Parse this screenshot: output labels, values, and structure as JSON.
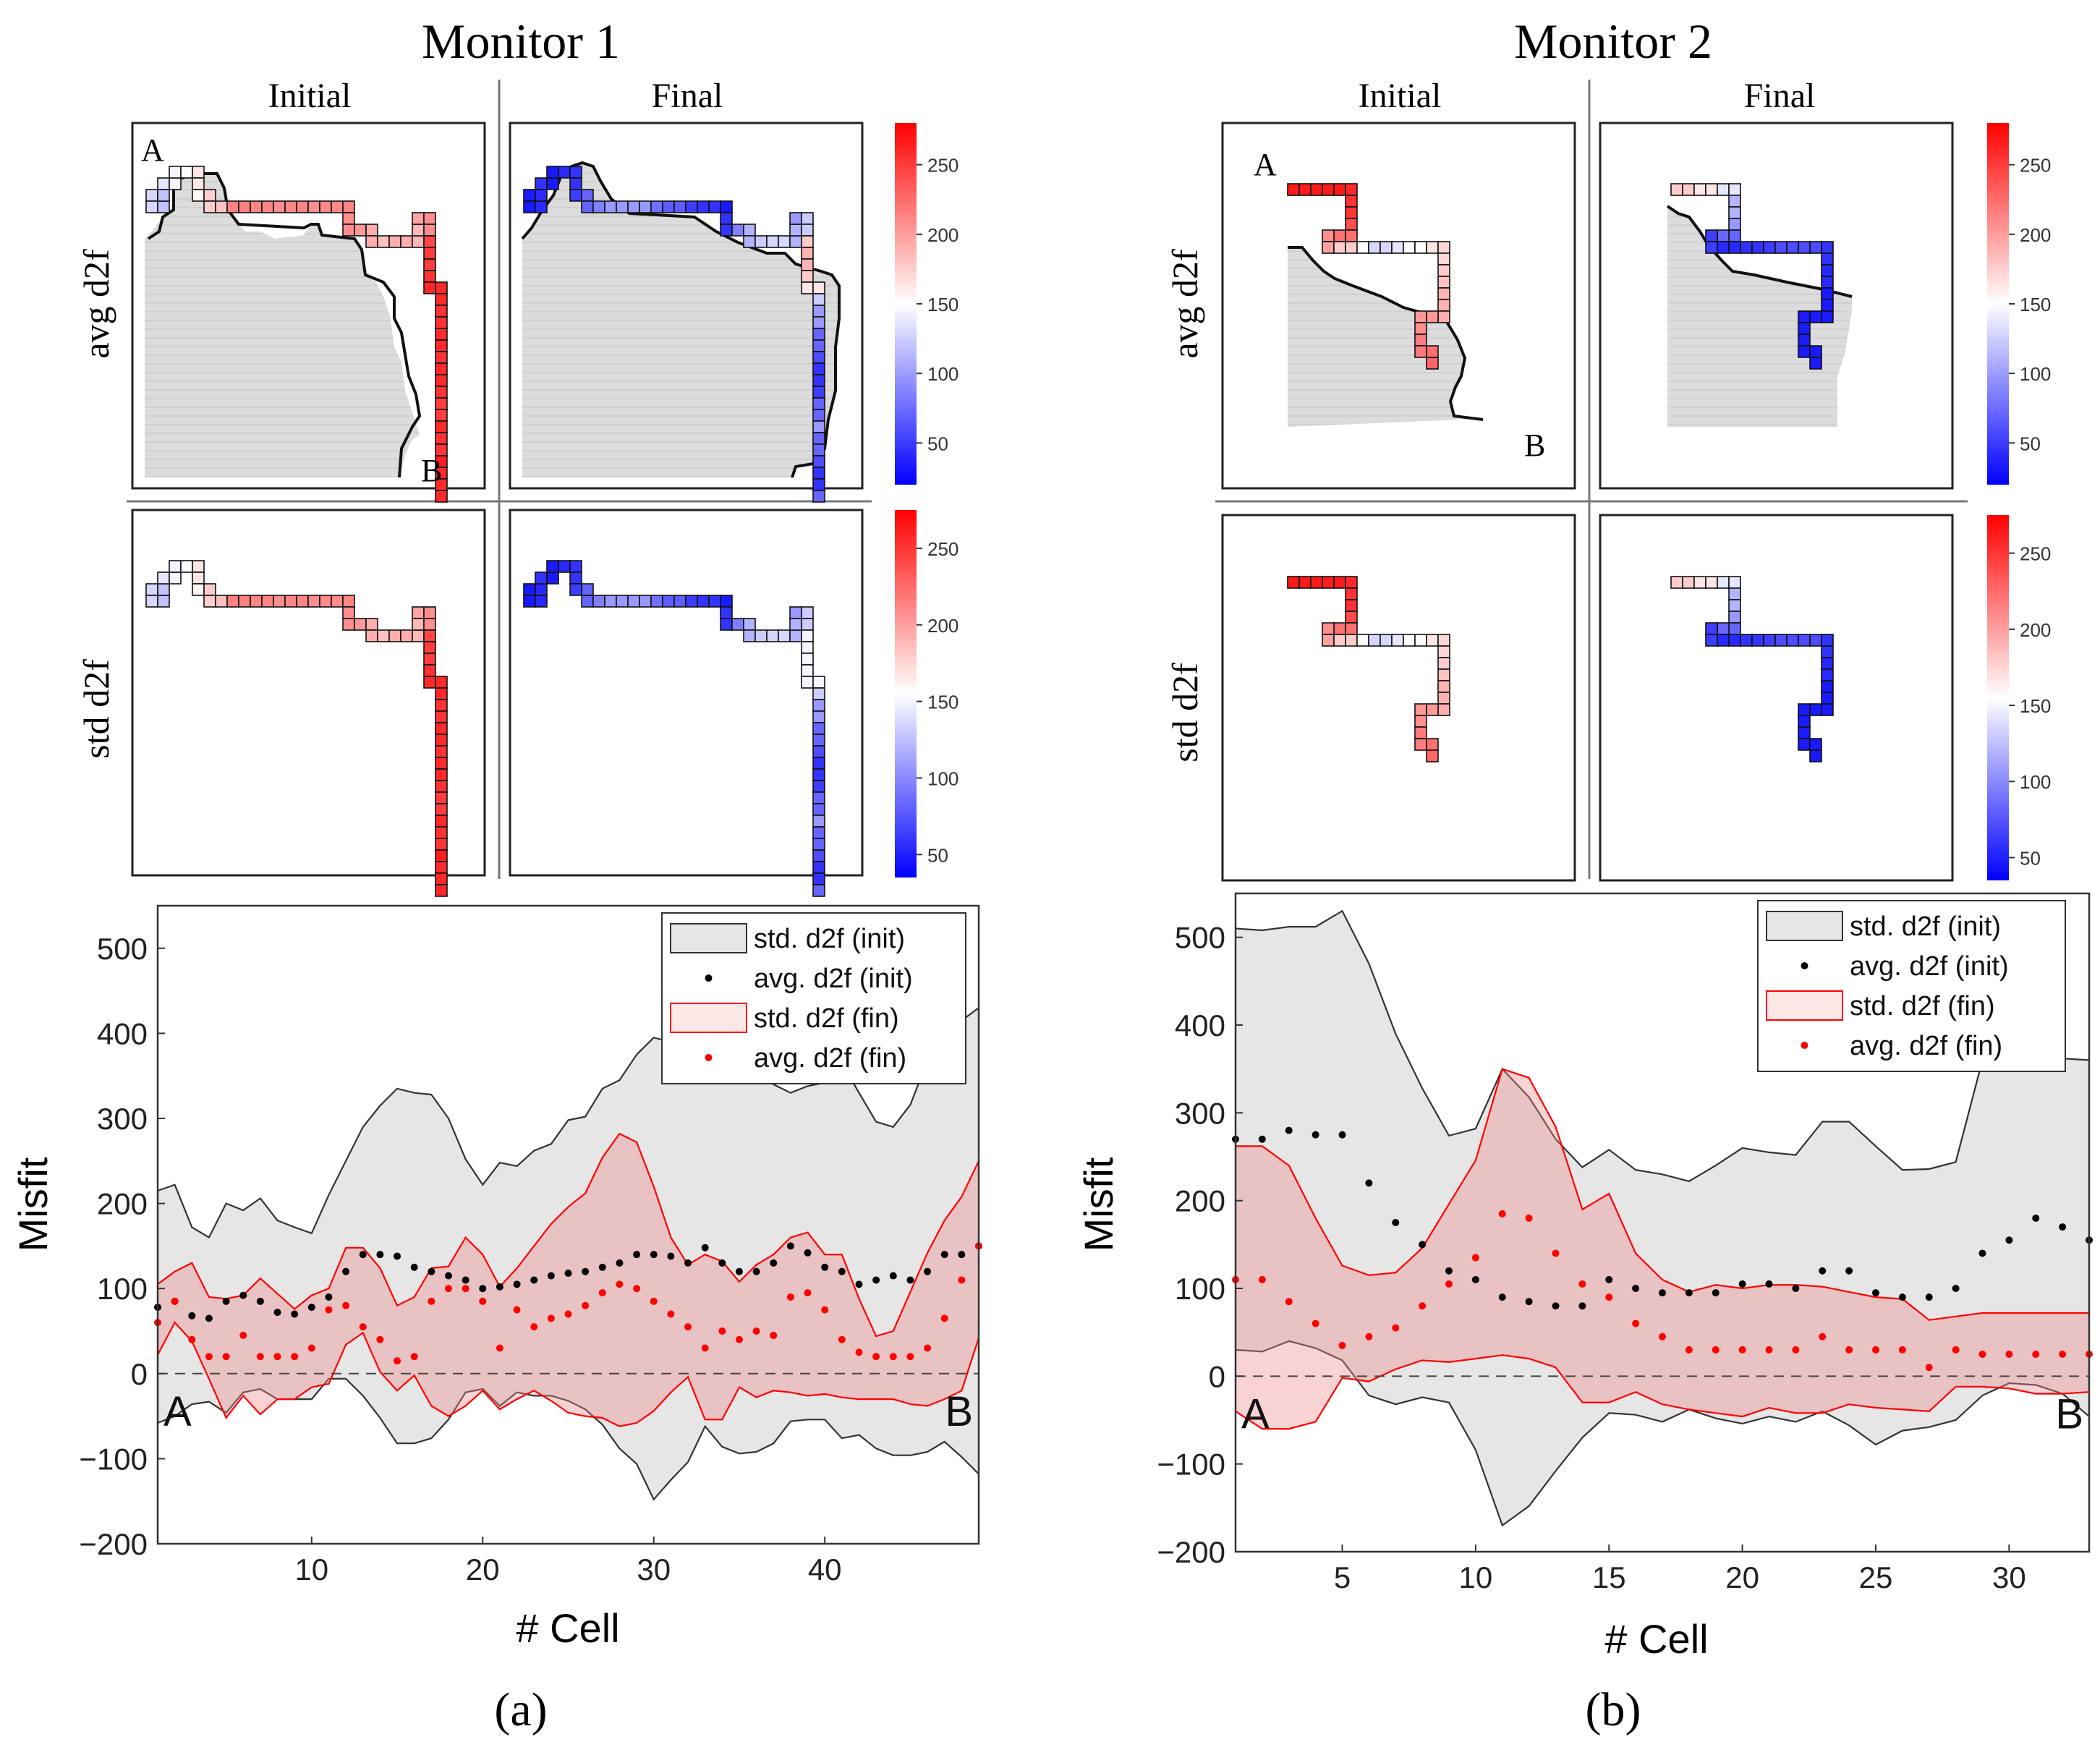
{
  "colors": {
    "red": "#ff0000",
    "blue": "#0000ff",
    "gray_fill": "#d9d9d9",
    "gray_band": "#e6e6e6",
    "pink_band": "#f7cfcf",
    "pink_light": "#fde8e8"
  },
  "panels": [
    {
      "title": "Monitor 1",
      "label": "(a)",
      "maps": {
        "col_initial": "Initial",
        "col_final": "Final",
        "row_avg": "avg d2f",
        "row_std": "std d2f",
        "marker_a": "A",
        "marker_b": "B",
        "colorbar_top_ticks": [
          "250",
          "200",
          "150",
          "100",
          "50"
        ],
        "colorbar_bottom_ticks": [
          "250",
          "200",
          "150",
          "100",
          "50"
        ]
      },
      "chart": {
        "xlabel": "# Cell",
        "ylabel": "Misfit",
        "xticks": [
          "10",
          "20",
          "30",
          "40"
        ],
        "yticks": [
          "500",
          "400",
          "300",
          "200",
          "100",
          "0",
          "−100",
          "−200"
        ],
        "marker_a": "A",
        "marker_b": "B",
        "legend": [
          "std. d2f (init)",
          "avg. d2f (init)",
          "std. d2f (fin)",
          "avg. d2f (fin)"
        ]
      }
    },
    {
      "title": "Monitor 2",
      "label": "(b)",
      "maps": {
        "col_initial": "Initial",
        "col_final": "Final",
        "row_avg": "avg d2f",
        "row_std": "std d2f",
        "marker_a": "A",
        "marker_b": "B",
        "colorbar_top_ticks": [
          "250",
          "200",
          "150",
          "100",
          "50"
        ],
        "colorbar_bottom_ticks": [
          "250",
          "200",
          "150",
          "100",
          "50"
        ]
      },
      "chart": {
        "xlabel": "# Cell",
        "ylabel": "Misfit",
        "xticks": [
          "5",
          "10",
          "15",
          "20",
          "25",
          "30"
        ],
        "yticks": [
          "500",
          "400",
          "300",
          "200",
          "100",
          "0",
          "−100",
          "−200"
        ],
        "marker_a": "A",
        "marker_b": "B",
        "legend": [
          "std. d2f (init)",
          "avg. d2f (init)",
          "std. d2f (fin)",
          "avg. d2f (fin)"
        ]
      }
    }
  ],
  "chart_data": [
    {
      "type": "area",
      "xlim": [
        1,
        49
      ],
      "ylim": [
        -200,
        550
      ],
      "grid": false,
      "legend_position": "top-right",
      "x": [
        1,
        2,
        3,
        4,
        5,
        6,
        7,
        8,
        9,
        10,
        11,
        12,
        13,
        14,
        15,
        16,
        17,
        18,
        19,
        20,
        21,
        22,
        23,
        24,
        25,
        26,
        27,
        28,
        29,
        30,
        31,
        32,
        33,
        34,
        35,
        36,
        37,
        38,
        39,
        40,
        41,
        42,
        43,
        44,
        45,
        46,
        47,
        48,
        49
      ],
      "series": [
        {
          "name": "std. d2f (init)",
          "upper": [
            215,
            222,
            172,
            160,
            200,
            192,
            206,
            180,
            172,
            165,
            210,
            250,
            290,
            315,
            335,
            330,
            328,
            300,
            252,
            222,
            248,
            244,
            262,
            270,
            298,
            302,
            335,
            345,
            375,
            395,
            390,
            390,
            395,
            405,
            360,
            355,
            340,
            330,
            338,
            342,
            365,
            330,
            296,
            290,
            316,
            368,
            395,
            415,
            430
          ],
          "lower": [
            -58,
            -50,
            -36,
            -33,
            -46,
            -22,
            -18,
            -30,
            -30,
            -30,
            -6,
            -6,
            -26,
            -52,
            -82,
            -82,
            -76,
            -54,
            -22,
            -18,
            -38,
            -22,
            -26,
            -26,
            -32,
            -42,
            -60,
            -88,
            -106,
            -148,
            -125,
            -104,
            -62,
            -86,
            -94,
            -92,
            -82,
            -56,
            -54,
            -54,
            -76,
            -72,
            -88,
            -96,
            -96,
            -92,
            -80,
            -98,
            -118
          ]
        },
        {
          "name": "avg. d2f (init)",
          "values": [
            78,
            85,
            68,
            65,
            85,
            92,
            85,
            72,
            70,
            78,
            90,
            120,
            140,
            140,
            138,
            125,
            120,
            115,
            110,
            100,
            102,
            105,
            110,
            115,
            118,
            120,
            125,
            130,
            140,
            140,
            138,
            130,
            148,
            130,
            120,
            120,
            130,
            150,
            142,
            125,
            120,
            105,
            110,
            115,
            110,
            120,
            140,
            140,
            150
          ]
        },
        {
          "name": "std. d2f (fin)",
          "upper": [
            105,
            120,
            130,
            90,
            88,
            92,
            112,
            94,
            76,
            92,
            100,
            148,
            148,
            124,
            80,
            90,
            124,
            126,
            160,
            140,
            102,
            124,
            150,
            176,
            196,
            212,
            254,
            282,
            272,
            220,
            160,
            128,
            140,
            132,
            108,
            128,
            140,
            160,
            166,
            140,
            140,
            88,
            44,
            50,
            96,
            142,
            180,
            208,
            250
          ],
          "lower": [
            22,
            60,
            38,
            -6,
            -52,
            -26,
            -48,
            -30,
            -30,
            -16,
            -12,
            34,
            48,
            2,
            -20,
            -2,
            -38,
            -50,
            -38,
            -20,
            -42,
            -30,
            -20,
            -32,
            -46,
            -50,
            -52,
            -62,
            -58,
            -44,
            -22,
            -4,
            -54,
            -54,
            -16,
            -28,
            -20,
            -22,
            -26,
            -24,
            -28,
            -30,
            -30,
            -30,
            -36,
            -38,
            -30,
            -20,
            42
          ]
        },
        {
          "name": "avg. d2f (fin)",
          "values": [
            60,
            85,
            40,
            20,
            20,
            45,
            20,
            20,
            20,
            30,
            75,
            80,
            55,
            40,
            15,
            20,
            85,
            100,
            100,
            85,
            30,
            75,
            55,
            65,
            70,
            80,
            95,
            105,
            100,
            85,
            70,
            55,
            30,
            50,
            40,
            50,
            45,
            90,
            95,
            75,
            40,
            25,
            20,
            20,
            20,
            30,
            65,
            110,
            150
          ]
        }
      ]
    },
    {
      "type": "area",
      "xlim": [
        1,
        33
      ],
      "ylim": [
        -200,
        550
      ],
      "grid": false,
      "legend_position": "top-right",
      "x": [
        1,
        2,
        3,
        4,
        5,
        6,
        7,
        8,
        9,
        10,
        11,
        12,
        13,
        14,
        15,
        16,
        17,
        18,
        19,
        20,
        21,
        22,
        23,
        24,
        25,
        26,
        27,
        28,
        29,
        30,
        31,
        32,
        33
      ],
      "series": [
        {
          "name": "std. d2f (init)",
          "upper": [
            510,
            508,
            512,
            512,
            530,
            470,
            390,
            328,
            274,
            282,
            350,
            318,
            270,
            238,
            258,
            235,
            230,
            222,
            240,
            260,
            255,
            252,
            290,
            290,
            262,
            235,
            236,
            244,
            360,
            360,
            362,
            362,
            360
          ],
          "lower": [
            30,
            28,
            40,
            32,
            18,
            -22,
            -32,
            -24,
            -30,
            -84,
            -170,
            -148,
            -108,
            -70,
            -42,
            -44,
            -52,
            -38,
            -48,
            -54,
            -46,
            -52,
            -40,
            -56,
            -78,
            -62,
            -58,
            -50,
            -22,
            -8,
            -10,
            -20,
            -46
          ]
        },
        {
          "name": "avg. d2f (init)",
          "values": [
            270,
            270,
            280,
            275,
            275,
            220,
            175,
            150,
            120,
            110,
            90,
            85,
            80,
            80,
            110,
            100,
            95,
            95,
            95,
            105,
            105,
            100,
            120,
            120,
            95,
            90,
            90,
            100,
            140,
            155,
            180,
            170,
            155
          ]
        },
        {
          "name": "std. d2f (fin)",
          "upper": [
            262,
            262,
            240,
            180,
            126,
            115,
            118,
            146,
            196,
            246,
            350,
            340,
            284,
            190,
            208,
            140,
            110,
            96,
            104,
            100,
            104,
            104,
            102,
            96,
            90,
            88,
            64,
            68,
            72,
            72,
            72,
            72,
            72
          ],
          "lower": [
            -40,
            -60,
            -60,
            -52,
            -2,
            -6,
            8,
            18,
            16,
            20,
            24,
            20,
            10,
            -30,
            -30,
            -18,
            -32,
            -38,
            -42,
            -46,
            -36,
            -42,
            -42,
            -32,
            -36,
            -38,
            -40,
            -12,
            -12,
            -14,
            -20,
            -20,
            -18
          ]
        },
        {
          "name": "avg. d2f (fin)",
          "values": [
            110,
            110,
            85,
            60,
            35,
            45,
            55,
            80,
            105,
            135,
            185,
            180,
            140,
            105,
            90,
            60,
            45,
            30,
            30,
            30,
            30,
            30,
            45,
            30,
            30,
            30,
            10,
            30,
            25,
            25,
            25,
            25,
            25
          ]
        }
      ]
    }
  ]
}
